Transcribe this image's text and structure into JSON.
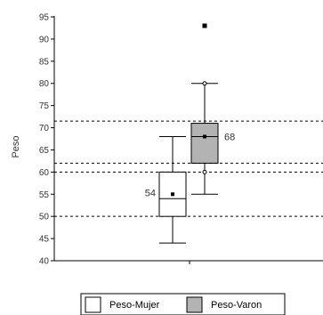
{
  "chart_data": {
    "type": "boxplot",
    "ylabel": "Peso",
    "ylim": [
      40,
      95
    ],
    "yticks": [
      40,
      45,
      50,
      55,
      60,
      65,
      70,
      75,
      80,
      85,
      90,
      95
    ],
    "grid": false,
    "reference_lines": [
      50,
      60,
      62,
      71.5
    ],
    "legend_position": "bottom",
    "colors": {
      "mujer_fill": "#ffffff",
      "varon_fill": "#b3b3b3",
      "outline": "#000000"
    },
    "series": [
      {
        "name": "Peso-Mujer",
        "whisker_low": 44,
        "q1": 50,
        "median": 54,
        "q3": 60,
        "whisker_high": 68,
        "mean": 55,
        "median_label": "54",
        "outliers_extreme": [],
        "outliers_mild": []
      },
      {
        "name": "Peso-Varon",
        "whisker_low": 55,
        "q1": 62,
        "median": 68,
        "q3": 71,
        "whisker_high": 80,
        "mean": 68,
        "median_label": "68",
        "outliers_extreme": [
          93
        ],
        "outliers_mild": [
          60,
          80
        ]
      }
    ]
  }
}
